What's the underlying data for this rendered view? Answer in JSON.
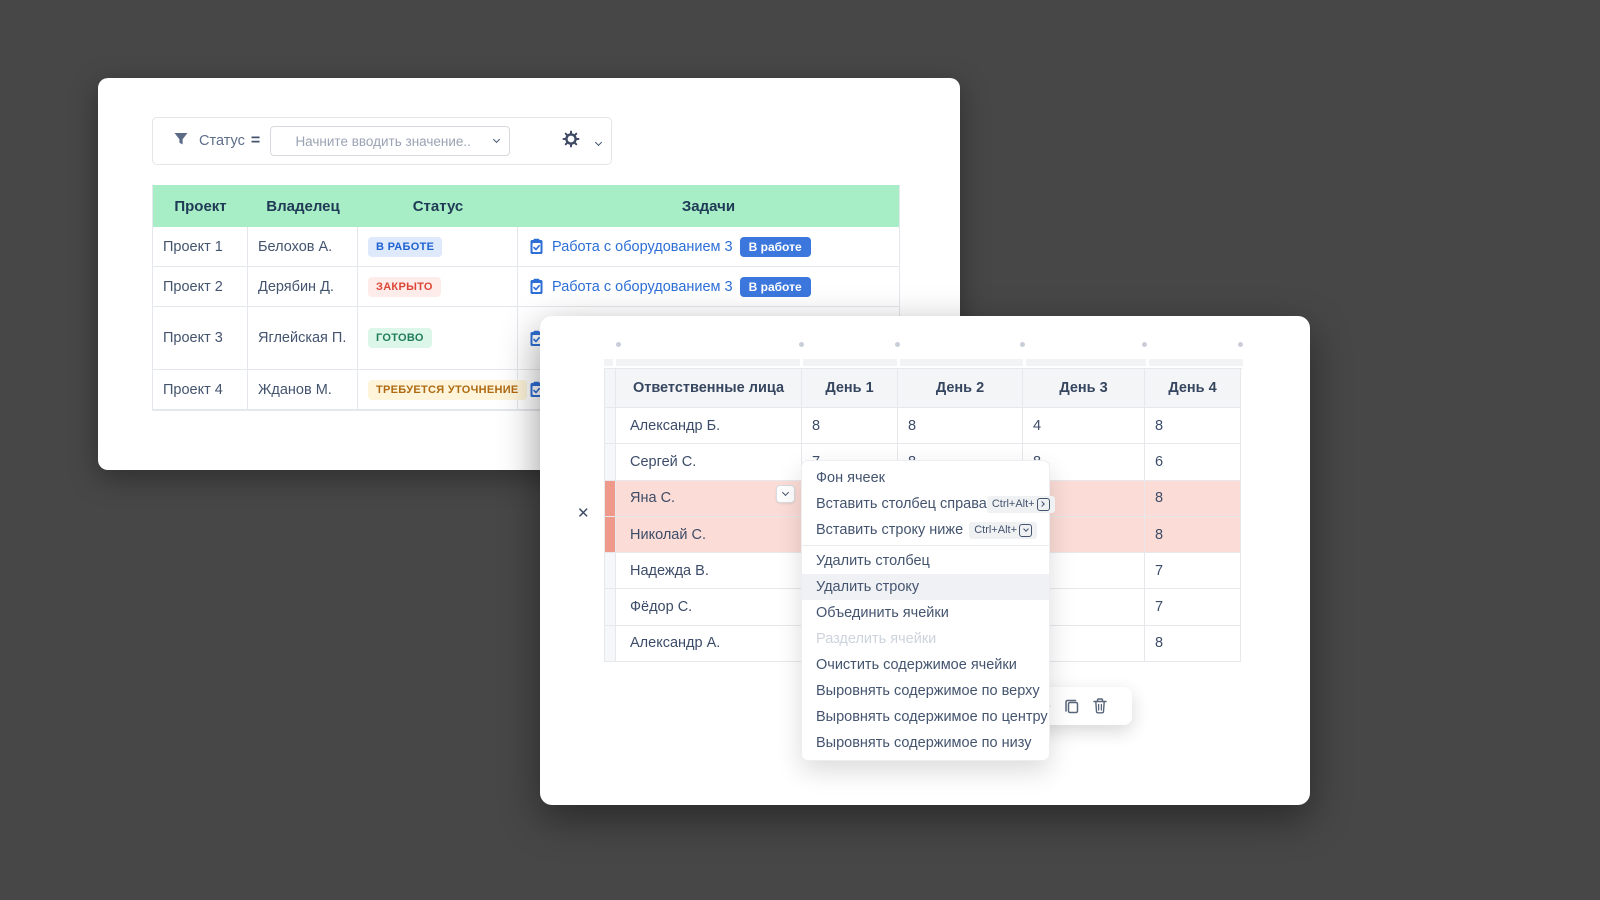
{
  "background": "#474747",
  "filter_card": {
    "filter_bar": {
      "field": "Статус",
      "operator": "=",
      "placeholder": "Начните вводить значение..",
      "icons": [
        "funnel-icon",
        "chevron-down-icon",
        "gear-icon"
      ]
    },
    "table": {
      "headers": [
        "Проект",
        "Владелец",
        "Статус",
        "Задачи"
      ],
      "header_bg": "#a7edc5",
      "rows": [
        {
          "project": "Проект 1",
          "owner": "Белохов А.",
          "status": {
            "label": "В РАБОТЕ",
            "bg": "#dfe9fc",
            "color": "#1e62d0"
          },
          "task": {
            "label": "Работа с оборудованием 3",
            "badge": "В работе",
            "badge_bg": "#3b77dd",
            "link_color": "#2e6fd6",
            "icon_only": false
          }
        },
        {
          "project": "Проект 2",
          "owner": "Дерябин Д.",
          "status": {
            "label": "ЗАКРЫТО",
            "bg": "#fdecea",
            "color": "#dc4636"
          },
          "task": {
            "label": "Работа с оборудованием 3",
            "badge": "В работе",
            "badge_bg": "#3b77dd",
            "link_color": "#2e6fd6",
            "icon_only": false
          }
        },
        {
          "project": "Проект 3",
          "owner": "Яглейская П.",
          "status": {
            "label": "ГОТОВО",
            "bg": "#dcf6e9",
            "color": "#1f7e5a"
          },
          "task": {
            "label": "",
            "badge": "",
            "badge_bg": "",
            "link_color": "#2e6fd6",
            "icon_only": true
          }
        },
        {
          "project": "Проект 4",
          "owner": "Жданов М.",
          "status": {
            "label": "ТРЕБУЕТСЯ УТОЧНЕНИЕ",
            "bg": "#fdf4d9",
            "color": "#b06a12"
          },
          "task": {
            "label": "",
            "badge": "",
            "badge_bg": "",
            "link_color": "#2e6fd6",
            "icon_only": true
          }
        }
      ]
    }
  },
  "grid_card": {
    "close_button": "✕",
    "table": {
      "headers": [
        "Ответственные лица",
        "День 1",
        "День 2",
        "День 3",
        "День 4"
      ],
      "highlight_bg": "#fcdcd6",
      "highlight_gutter_bg": "#ef998b",
      "rows": [
        {
          "name": "Александр Б.",
          "values": [
            "8",
            "8",
            "4",
            "8"
          ],
          "highlighted": false,
          "has_chevron": false
        },
        {
          "name": "Сергей С.",
          "values": [
            "7",
            "8",
            "8",
            "6"
          ],
          "highlighted": false,
          "has_chevron": false
        },
        {
          "name": "Яна С.",
          "values": [
            "",
            "",
            "",
            "8"
          ],
          "highlighted": true,
          "has_chevron": true
        },
        {
          "name": "Николай С.",
          "values": [
            "",
            "",
            "",
            "8"
          ],
          "highlighted": true,
          "has_chevron": false
        },
        {
          "name": "Надежда В.",
          "values": [
            "",
            "",
            "",
            "7"
          ],
          "highlighted": false,
          "has_chevron": false
        },
        {
          "name": "Фёдор С.",
          "values": [
            "",
            "",
            "",
            "7"
          ],
          "highlighted": false,
          "has_chevron": false
        },
        {
          "name": "Александр А.",
          "values": [
            "",
            "",
            "",
            "8"
          ],
          "highlighted": false,
          "has_chevron": false
        }
      ]
    }
  },
  "context_menu": {
    "items": [
      {
        "label": "Фон ячеек",
        "state": "normal"
      },
      {
        "label": "Вставить столбец справа",
        "state": "normal",
        "shortcut": "Ctrl+Alt+",
        "shortcut_key": "right"
      },
      {
        "label": "Вставить строку ниже",
        "state": "normal",
        "shortcut": "Ctrl+Alt+",
        "shortcut_key": "down",
        "separator_after": true
      },
      {
        "label": "Удалить столбец",
        "state": "normal"
      },
      {
        "label": "Удалить строку",
        "state": "hover"
      },
      {
        "label": "Объединить ячейки",
        "state": "normal"
      },
      {
        "label": "Разделить ячейки",
        "state": "disabled"
      },
      {
        "label": "Очистить содержимое ячейки",
        "state": "normal"
      },
      {
        "label": "Выровнять содержимое по верху",
        "state": "normal"
      },
      {
        "label": "Выровнять содержимое по центру",
        "state": "normal"
      },
      {
        "label": "Выровнять содержимое по низу",
        "state": "normal"
      }
    ]
  },
  "toolbar": {
    "icons": [
      "arrow-right-icon",
      "copy-icon",
      "trash-icon"
    ]
  }
}
